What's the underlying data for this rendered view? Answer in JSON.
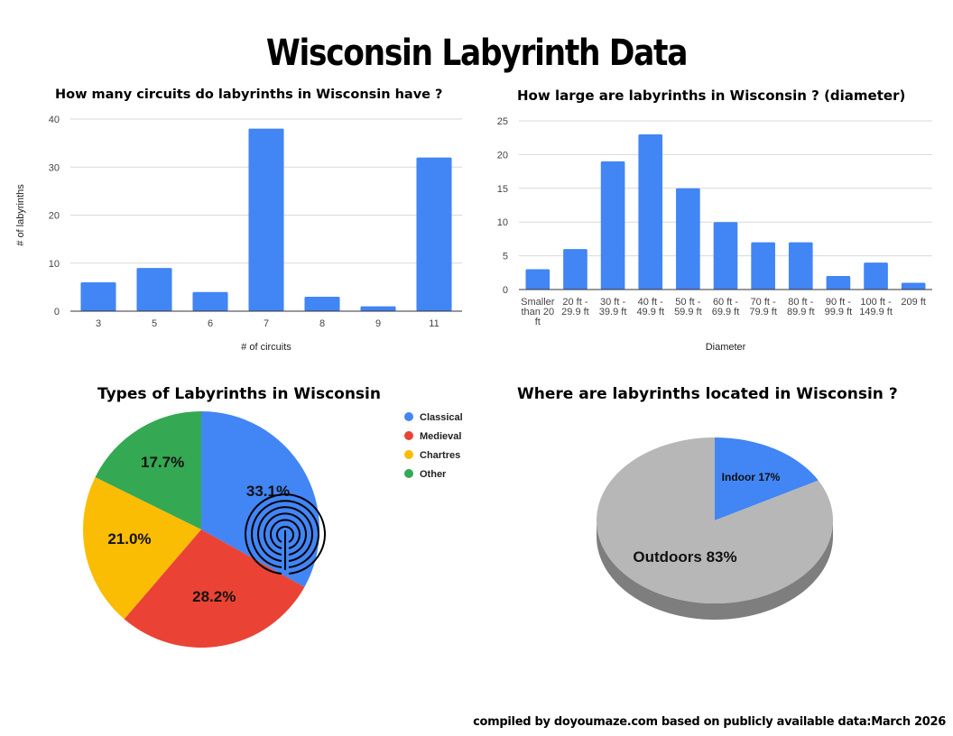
{
  "title": "Wisconsin Labyrinth Data",
  "footer": "compiled by doyoumaze.com based on publicly available data:March 2026",
  "colors": {
    "bar": "#4285F4",
    "grid": "#d9d9d9",
    "axis": "#333333"
  },
  "chart_data": [
    {
      "type": "bar",
      "title": "How many circuits do labyrinths in Wisconsin have ?",
      "xlabel": "# of circuits",
      "ylabel": "# of labyrinths",
      "categories": [
        "3",
        "5",
        "6",
        "7",
        "8",
        "9",
        "11"
      ],
      "values": [
        6,
        9,
        4,
        38,
        3,
        1,
        32
      ],
      "ylim": [
        0,
        40
      ],
      "yticks": [
        0,
        10,
        20,
        30,
        40
      ],
      "grid": true,
      "color": "#4285F4"
    },
    {
      "type": "bar",
      "title": "How large are labyrinths in Wisconsin ? (diameter)",
      "xlabel": "Diameter",
      "ylabel": "",
      "categories": [
        "Smaller than 20 ft",
        "20 ft - 29.9 ft",
        "30 ft - 39.9 ft",
        "40 ft - 49.9 ft",
        "50 ft - 59.9 ft",
        "60 ft - 69.9 ft",
        "70 ft - 79.9 ft",
        "80 ft - 89.9 ft",
        "90 ft - 99.9 ft",
        "100 ft - 149.9 ft",
        "209 ft"
      ],
      "category_lines": [
        [
          "Smaller",
          "than 20",
          "ft"
        ],
        [
          "20 ft -",
          "29.9 ft"
        ],
        [
          "30 ft -",
          "39.9 ft"
        ],
        [
          "40 ft -",
          "49.9 ft"
        ],
        [
          "50 ft -",
          "59.9 ft"
        ],
        [
          "60 ft -",
          "69.9 ft"
        ],
        [
          "70 ft -",
          "79.9 ft"
        ],
        [
          "80 ft -",
          "89.9 ft"
        ],
        [
          "90 ft -",
          "99.9 ft"
        ],
        [
          "100 ft -",
          "149.9 ft"
        ],
        [
          "209 ft"
        ]
      ],
      "values": [
        3,
        6,
        19,
        23,
        15,
        10,
        7,
        7,
        2,
        4,
        1
      ],
      "ylim": [
        0,
        25
      ],
      "yticks": [
        0,
        5,
        10,
        15,
        20,
        25
      ],
      "grid": true,
      "color": "#4285F4"
    },
    {
      "type": "pie",
      "title": "Types of Labyrinths in Wisconsin",
      "legend": "right",
      "slices": [
        {
          "name": "Classical",
          "value": 33.1,
          "label": "33.1%",
          "color": "#4285F4"
        },
        {
          "name": "Medieval",
          "value": 28.2,
          "label": "28.2%",
          "color": "#EA4335"
        },
        {
          "name": "Chartres",
          "value": 21.0,
          "label": "21.0%",
          "color": "#FBBC04"
        },
        {
          "name": "Other",
          "value": 17.7,
          "label": "17.7%",
          "color": "#34A853"
        }
      ]
    },
    {
      "type": "pie",
      "title": "Where are labyrinths located in Wisconsin ?",
      "style": "3d",
      "slices": [
        {
          "name": "Indoor",
          "value": 17,
          "label": "Indoor 17%",
          "color": "#4285F4"
        },
        {
          "name": "Outdoors",
          "value": 83,
          "label": "Outdoors 83%",
          "color": "#b7b7b7"
        }
      ]
    }
  ]
}
